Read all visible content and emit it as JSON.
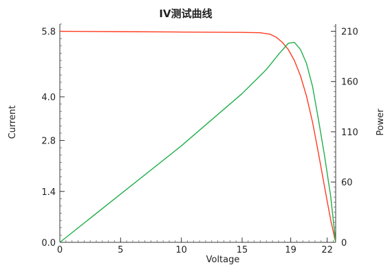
{
  "chart_data": {
    "type": "line",
    "title": "IV测试曲线",
    "xlabel": "Voltage",
    "ylabel": "Current",
    "y2label": "Power",
    "xlim": [
      0,
      22.7
    ],
    "ylim": [
      0,
      6.0
    ],
    "y2lim": [
      0,
      217.2
    ],
    "x_ticks": [
      0,
      5,
      10,
      15,
      19,
      22
    ],
    "y_ticks": [
      0.0,
      1.4,
      2.8,
      4.0,
      5.8
    ],
    "y_tick_labels": [
      "0.0",
      "1.4",
      "2.8",
      "4.0",
      "5.8"
    ],
    "y2_ticks": [
      0,
      60,
      110,
      160,
      210
    ],
    "grid": false,
    "legend": "none",
    "series": [
      {
        "axis": "left",
        "color": "#ff3b1f",
        "x": [
          0,
          5,
          10,
          15,
          16.5,
          17.3,
          17.8,
          18.3,
          18.8,
          19.3,
          19.8,
          20.3,
          20.8,
          21.3,
          21.8,
          22.3,
          22.7
        ],
        "values": [
          5.8,
          5.79,
          5.78,
          5.77,
          5.76,
          5.72,
          5.64,
          5.5,
          5.3,
          5.0,
          4.58,
          4.02,
          3.3,
          2.42,
          1.5,
          0.6,
          0.0
        ]
      },
      {
        "axis": "right",
        "color": "#1fae4a",
        "x": [
          0,
          5,
          10,
          15,
          17,
          18,
          18.8,
          19.3,
          19.8,
          20.3,
          20.8,
          21.3,
          21.8,
          22.3,
          22.7
        ],
        "values": [
          0,
          48,
          96,
          148,
          172,
          187,
          198,
          199,
          192,
          178,
          155,
          121,
          85,
          45,
          0
        ]
      }
    ]
  }
}
